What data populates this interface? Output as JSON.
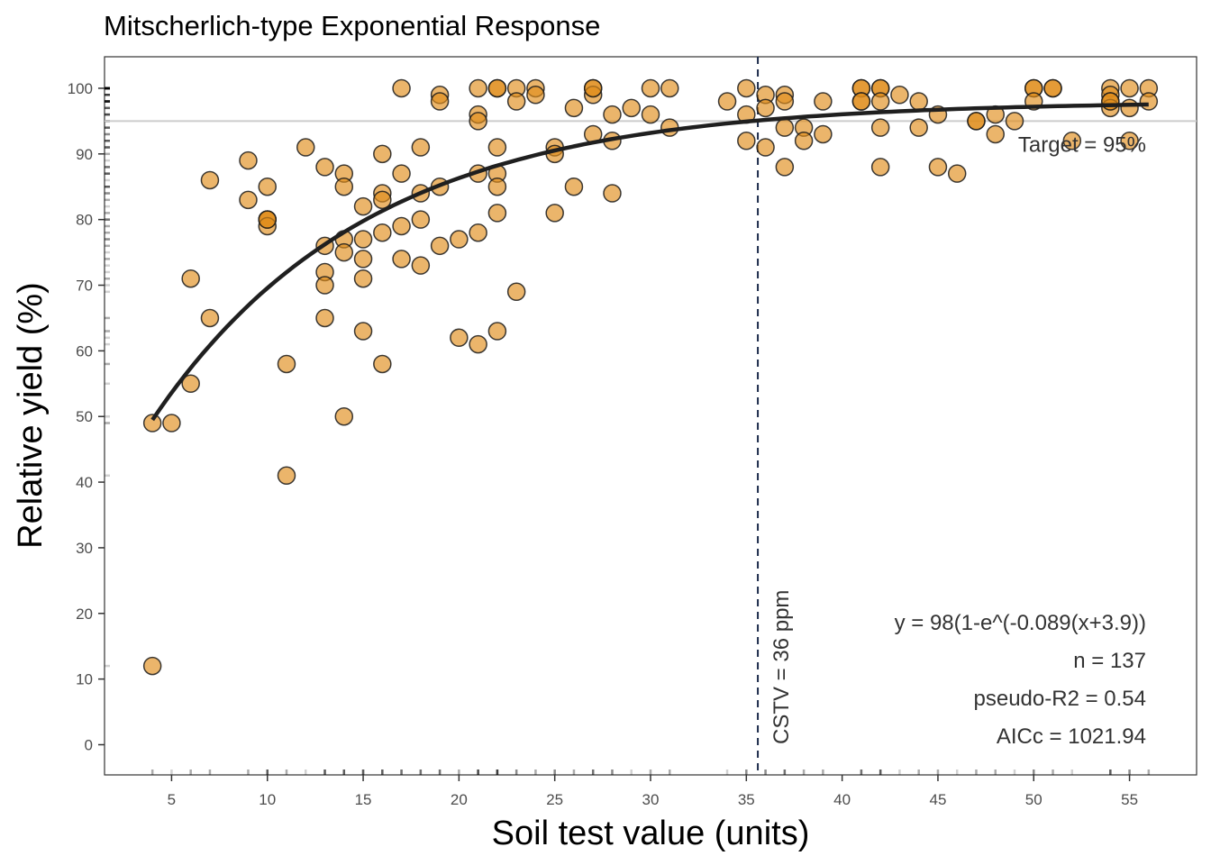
{
  "chart_data": {
    "type": "scatter",
    "title": "Mitscherlich-type Exponential Response",
    "xlabel": "Soil test value (units)",
    "ylabel": "Relative yield (%)",
    "xlim": [
      1.5,
      58.5
    ],
    "ylim": [
      -4.6,
      104.8
    ],
    "grid": false,
    "x_ticks": [
      5,
      10,
      15,
      20,
      25,
      30,
      35,
      40,
      45,
      50,
      55
    ],
    "y_ticks": [
      0,
      10,
      20,
      30,
      40,
      50,
      60,
      70,
      80,
      90,
      100
    ],
    "point_color": "#E08E1B",
    "point_opacity": 0.65,
    "point_stroke": "#1a1a1a",
    "curve_color": "#1f1f1f",
    "target_line_color": "#cccccc",
    "cstv_line_color": "#1b2a4a",
    "points": {
      "x": [
        4,
        5,
        6,
        6,
        7,
        7,
        9,
        9,
        10,
        10,
        10,
        10,
        11,
        11,
        12,
        13,
        13,
        13,
        13,
        13,
        14,
        14,
        14,
        14,
        14,
        15,
        15,
        15,
        15,
        15,
        16,
        16,
        16,
        16,
        16,
        17,
        17,
        17,
        17,
        18,
        18,
        18,
        18,
        19,
        19,
        19,
        19,
        20,
        20,
        21,
        21,
        21,
        21,
        21,
        21,
        22,
        22,
        22,
        22,
        22,
        22,
        22,
        23,
        23,
        23,
        24,
        24,
        25,
        25,
        25,
        26,
        26,
        27,
        27,
        27,
        27,
        28,
        28,
        28,
        29,
        30,
        30,
        31,
        31,
        34,
        35,
        35,
        35,
        36,
        36,
        36,
        37,
        37,
        37,
        37,
        38,
        38,
        39,
        39,
        41,
        41,
        41,
        41,
        42,
        42,
        42,
        42,
        42,
        43,
        44,
        44,
        45,
        45,
        46,
        47,
        47,
        48,
        48,
        49,
        50,
        50,
        50,
        51,
        51,
        52,
        54,
        54,
        54,
        54,
        54,
        55,
        55,
        55,
        56,
        56,
        4,
        10
      ],
      "y": [
        12,
        49,
        71,
        55,
        86,
        65,
        89,
        83,
        85,
        80,
        80,
        79,
        58,
        41,
        91,
        88,
        76,
        72,
        70,
        65,
        87,
        85,
        77,
        75,
        50,
        82,
        77,
        74,
        71,
        63,
        90,
        84,
        83,
        78,
        58,
        100,
        87,
        79,
        74,
        91,
        84,
        80,
        73,
        99,
        98,
        85,
        76,
        77,
        62,
        100,
        96,
        95,
        87,
        78,
        61,
        100,
        91,
        87,
        85,
        81,
        63,
        100,
        100,
        98,
        69,
        100,
        99,
        91,
        90,
        81,
        97,
        85,
        100,
        99,
        93,
        100,
        96,
        92,
        84,
        97,
        100,
        96,
        100,
        94,
        98,
        100,
        96,
        92,
        99,
        97,
        91,
        99,
        98,
        94,
        88,
        94,
        92,
        98,
        93,
        100,
        100,
        98,
        98,
        100,
        100,
        98,
        94,
        88,
        99,
        98,
        94,
        96,
        88,
        87,
        95,
        95,
        96,
        93,
        95,
        100,
        100,
        98,
        100,
        100,
        92,
        100,
        99,
        98,
        97,
        98,
        100,
        97,
        92,
        100,
        98,
        49,
        80
      ]
    },
    "model": {
      "equation": "y = 98(1-e^(-0.089(x+3.9))",
      "asymptote": 98,
      "rate": 0.089,
      "shift": 3.9,
      "x_range": [
        4,
        56
      ]
    },
    "target": {
      "value": 95,
      "label": "Target = 95%"
    },
    "cstv": {
      "value": 35.6,
      "label": "CSTV = 36 ppm"
    },
    "stats": {
      "equation_label": "y = 98(1-e^(-0.089(x+3.9))",
      "n_label": "n = 137",
      "r2_label": "pseudo-R2 = 0.54",
      "aicc_label": "AICc = 1021.94"
    }
  }
}
